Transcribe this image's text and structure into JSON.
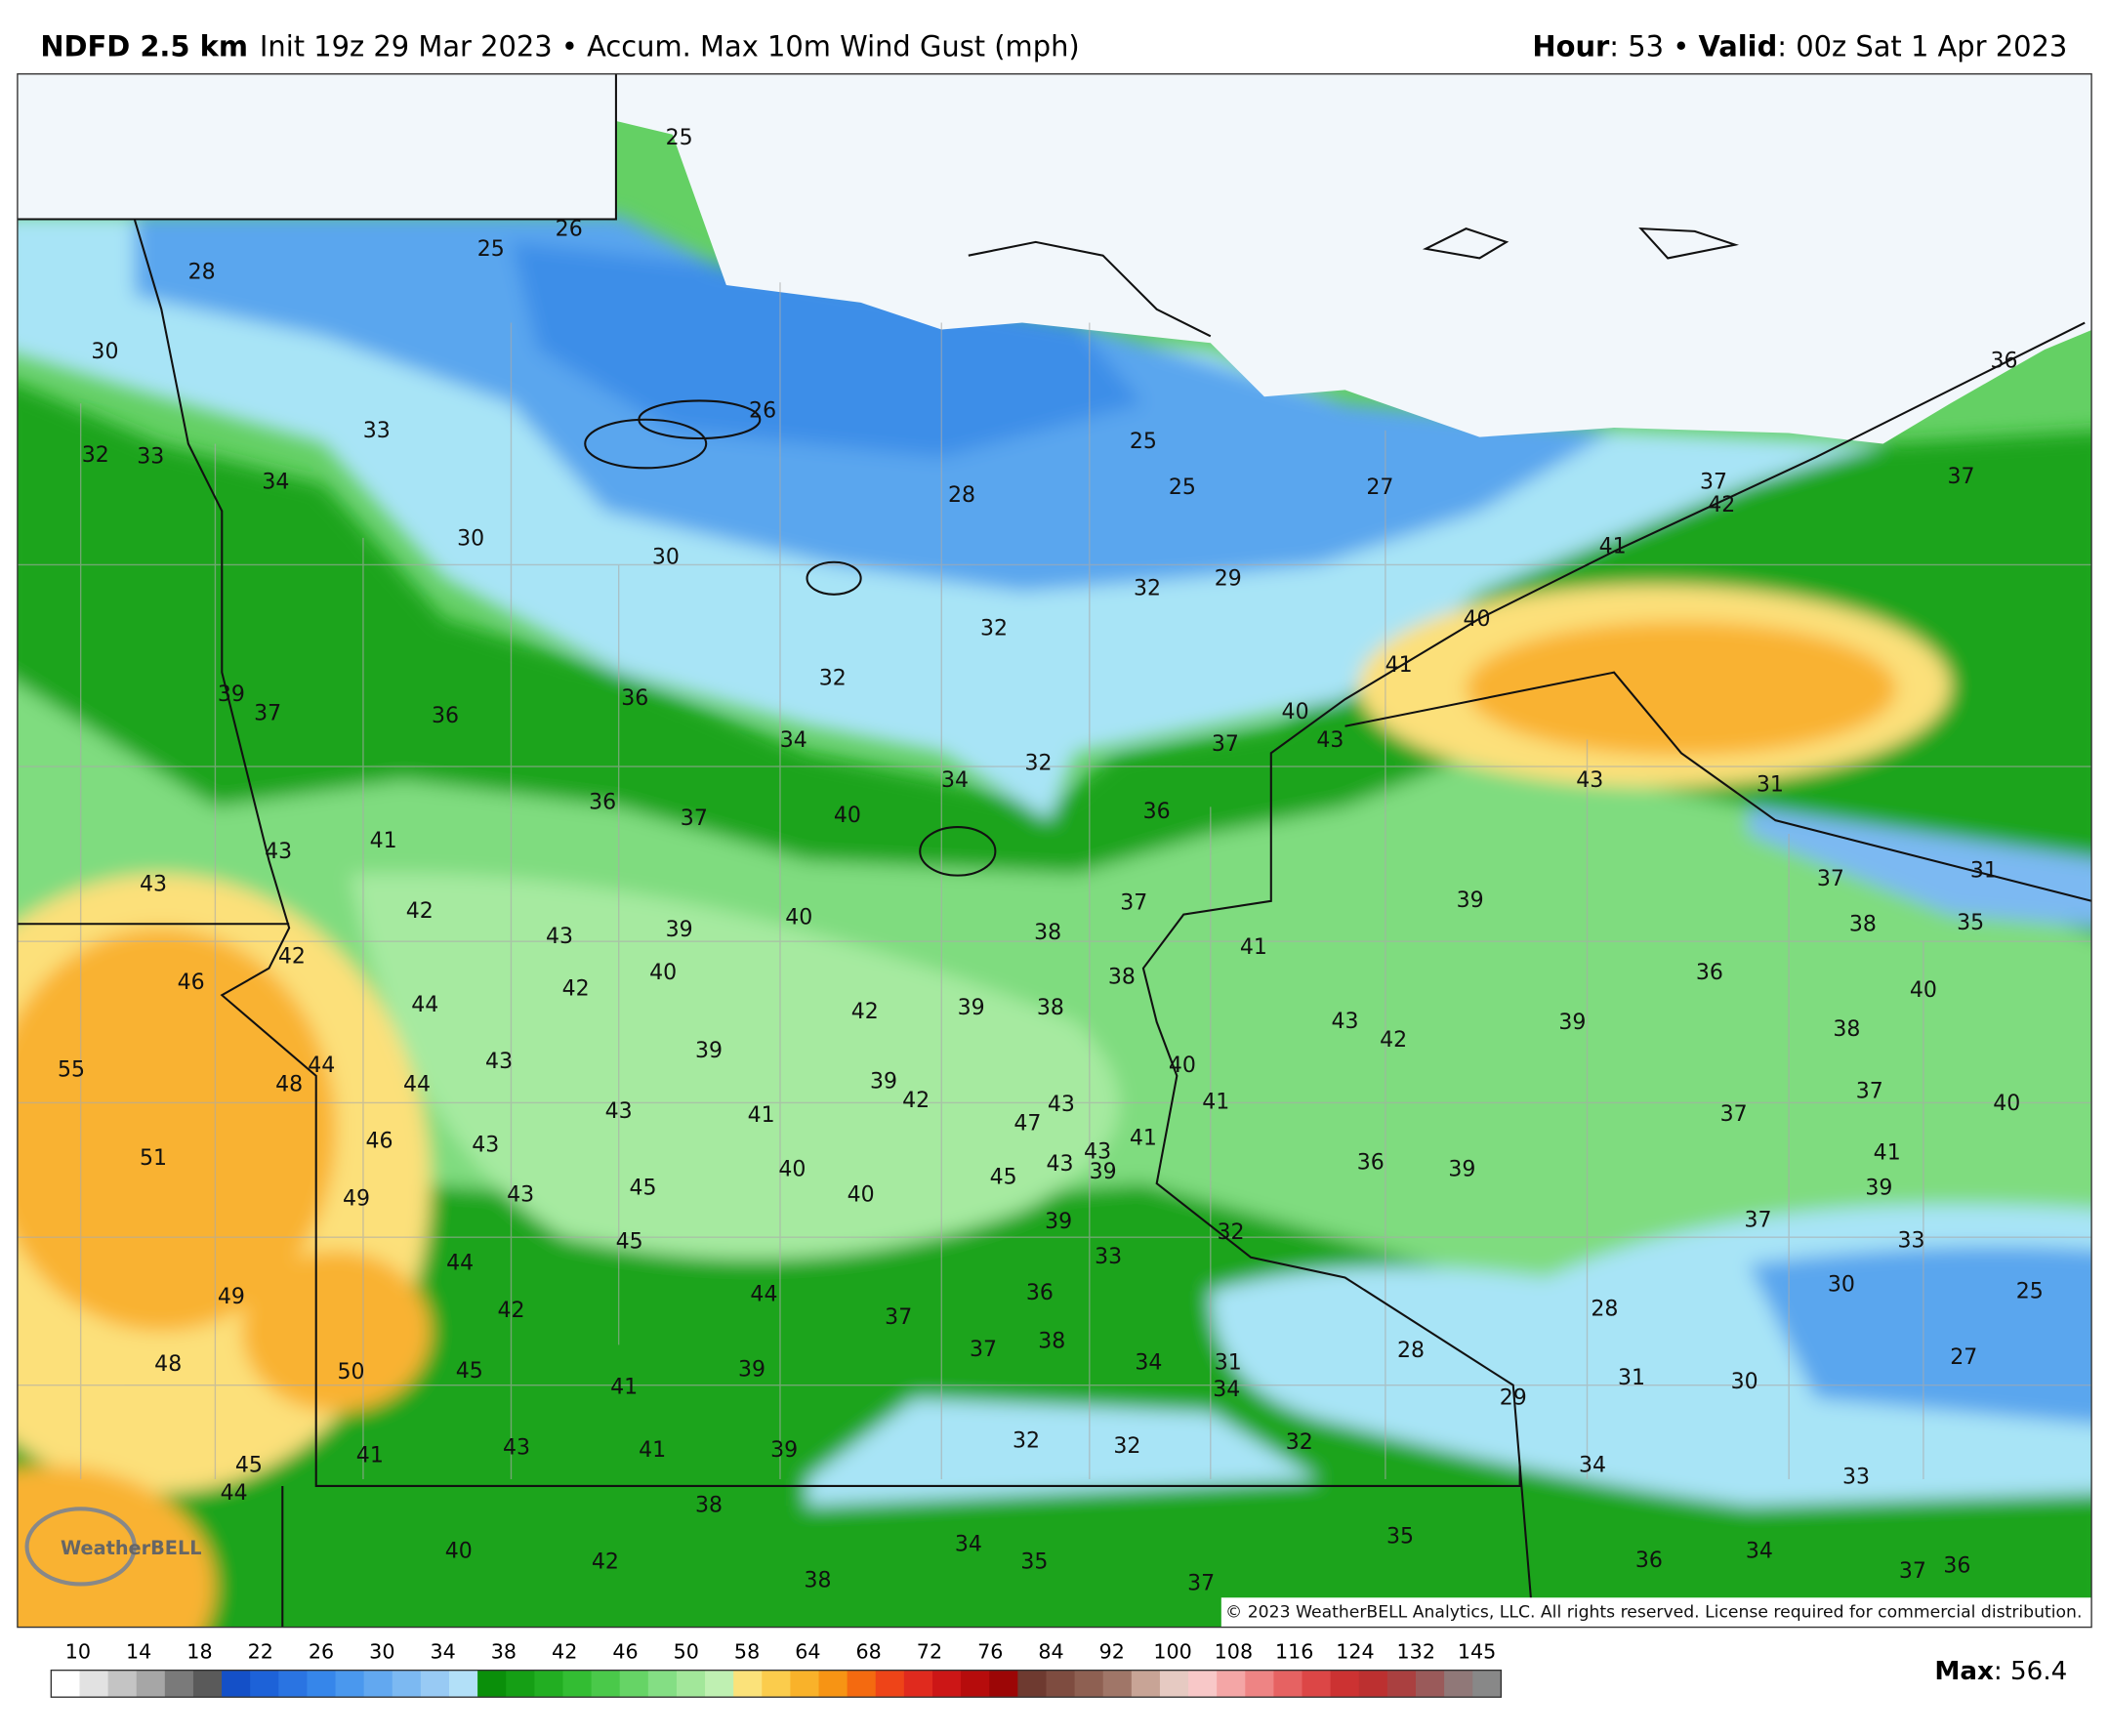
{
  "header": {
    "model": "NDFD 2.5 km",
    "subtitle": "Init 19z 29 Mar 2023 • Accum. Max 10m Wind Gust (mph)",
    "hour_key": "Hour",
    "hour_text": ": 53 • ",
    "valid_key": "Valid",
    "valid_text": ": 00z Sat 1 Apr 2023"
  },
  "map": {
    "logo": "WeatherBELL",
    "copyright": "© 2023 WeatherBELL Analytics, LLC. All rights reserved. License required for commercial distribution.",
    "labels": [
      25,
      28,
      25,
      26,
      30,
      33,
      26,
      32,
      33,
      34,
      30,
      30,
      28,
      25,
      25,
      27,
      29,
      32,
      32,
      32,
      36,
      37,
      37,
      42,
      41,
      40,
      41,
      40,
      43,
      37,
      39,
      37,
      36,
      36,
      34,
      34,
      32,
      36,
      43,
      31,
      36,
      37,
      40,
      41,
      43,
      43,
      42,
      43,
      39,
      40,
      37,
      39,
      37,
      31,
      42,
      46,
      42,
      40,
      44,
      42,
      39,
      38,
      38,
      38,
      41,
      38,
      35,
      36,
      40,
      39,
      43,
      55,
      48,
      44,
      44,
      43,
      42,
      39,
      38,
      40,
      39,
      42,
      43,
      41,
      43,
      41,
      47,
      37,
      37,
      40,
      46,
      43,
      51,
      43,
      41,
      39,
      43,
      45,
      40,
      40,
      45,
      43,
      49,
      36,
      39,
      41,
      39,
      39,
      37,
      32,
      33,
      33,
      45,
      44,
      36,
      44,
      30,
      25,
      49,
      42,
      37,
      28,
      38,
      37,
      28,
      48,
      50,
      45,
      39,
      34,
      31,
      27,
      34,
      31,
      30,
      41,
      29,
      32,
      32,
      32,
      43,
      41,
      39,
      41,
      45,
      44,
      34,
      33,
      38,
      34,
      35,
      40,
      42,
      35,
      34,
      36,
      36,
      37,
      38,
      37
    ]
  },
  "colorbar": {
    "ticks": [
      10,
      14,
      18,
      22,
      26,
      30,
      34,
      38,
      42,
      46,
      50,
      58,
      64,
      68,
      72,
      76,
      84,
      92,
      100,
      108,
      116,
      124,
      132,
      145
    ],
    "colors": [
      "#ffffff",
      "#e2e2e2",
      "#c4c4c4",
      "#a6a6a6",
      "#7a7a7a",
      "#5a5a5a",
      "#1450c8",
      "#1d62d8",
      "#2a74e2",
      "#3686ea",
      "#4a98ee",
      "#62a8f0",
      "#7cb9f2",
      "#98caf4",
      "#b2e0f8",
      "#0a8f0a",
      "#159f15",
      "#22ae22",
      "#33bd33",
      "#4ac94a",
      "#66d466",
      "#84de84",
      "#a2e79a",
      "#bff0b2",
      "#fbe27a",
      "#fbcc4c",
      "#f9b22a",
      "#f79414",
      "#f46a10",
      "#ee4418",
      "#e02a1e",
      "#cc1616",
      "#b60c0c",
      "#9c0606",
      "#6e3a30",
      "#7e4c40",
      "#8e6052",
      "#a07668",
      "#c8a496",
      "#e6cac2",
      "#f8c8c8",
      "#f4a6a6",
      "#ee8484",
      "#e66262",
      "#dc4646",
      "#cc3232",
      "#bc3030",
      "#aa4040",
      "#9a5a5a",
      "#907878",
      "#888888"
    ],
    "max_key": "Max",
    "max_text": ": 56.4"
  }
}
